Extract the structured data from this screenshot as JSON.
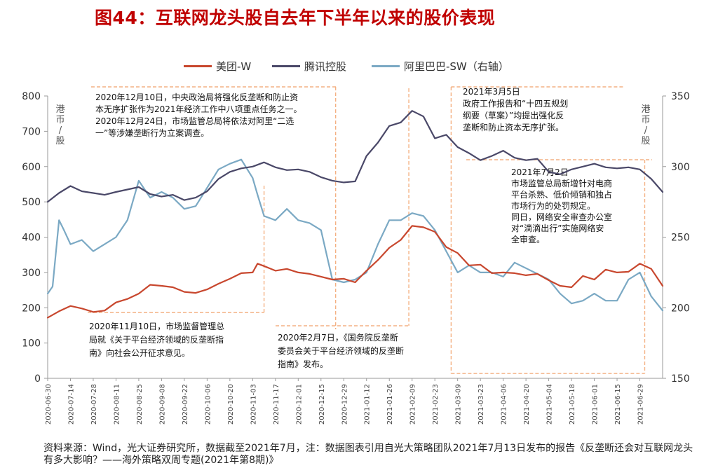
{
  "title": "图44：互联网龙头股自去年下半年以来的股价表现",
  "source": "资料来源：Wind，光大证券研究所，数据截至2021年7月，注：数据图表引用自光大策略团队2021年7月13日发布的报告《反垄断还会对互联网龙头有多大影响？——海外策略双周专题(2021年第8期)》",
  "colors": {
    "meituan": "#c8472e",
    "tencent": "#4a4868",
    "alibaba": "#7ba9c4",
    "annotation": "#f4b183",
    "title": "#c00000"
  },
  "chart_data": {
    "type": "line",
    "y_left": {
      "unit_label": "港币/股",
      "range": [
        0,
        800
      ],
      "ticks": [
        "0",
        "100",
        "200",
        "300",
        "400",
        "500",
        "600",
        "700",
        "800"
      ]
    },
    "y_right": {
      "unit_label": "港币/股",
      "range": [
        150,
        350
      ],
      "ticks": [
        "150",
        "200",
        "250",
        "300",
        "350"
      ]
    },
    "x_range": [
      "2020-06-30",
      "2021-07-13"
    ],
    "x_ticks": [
      "2020-06-30",
      "2020-07-14",
      "2020-07-28",
      "2020-08-11",
      "2020-08-25",
      "2020-09-08",
      "2020-09-22",
      "2020-10-06",
      "2020-10-20",
      "2020-11-03",
      "2020-11-17",
      "2020-12-01",
      "2020-12-15",
      "2020-12-29",
      "2021-01-12",
      "2021-01-26",
      "2021-02-09",
      "2021-02-23",
      "2021-03-09",
      "2021-03-23",
      "2021-04-06",
      "2021-04-20",
      "2021-05-04",
      "2021-05-18",
      "2021-06-01",
      "2021-06-15",
      "2021-06-29"
    ],
    "series": [
      {
        "name": "美团-W",
        "axis": "left",
        "key": "meituan",
        "points": [
          [
            "2020-06-30",
            172
          ],
          [
            "2020-07-07",
            190
          ],
          [
            "2020-07-14",
            205
          ],
          [
            "2020-07-21",
            198
          ],
          [
            "2020-07-28",
            188
          ],
          [
            "2020-08-04",
            192
          ],
          [
            "2020-08-11",
            215
          ],
          [
            "2020-08-18",
            225
          ],
          [
            "2020-08-25",
            240
          ],
          [
            "2020-09-01",
            265
          ],
          [
            "2020-09-08",
            262
          ],
          [
            "2020-09-15",
            258
          ],
          [
            "2020-09-22",
            245
          ],
          [
            "2020-09-29",
            242
          ],
          [
            "2020-10-06",
            252
          ],
          [
            "2020-10-13",
            268
          ],
          [
            "2020-10-20",
            282
          ],
          [
            "2020-10-27",
            298
          ],
          [
            "2020-11-03",
            300
          ],
          [
            "2020-11-06",
            325
          ],
          [
            "2020-11-10",
            318
          ],
          [
            "2020-11-17",
            305
          ],
          [
            "2020-11-24",
            310
          ],
          [
            "2020-12-01",
            300
          ],
          [
            "2020-12-08",
            296
          ],
          [
            "2020-12-15",
            288
          ],
          [
            "2020-12-22",
            280
          ],
          [
            "2020-12-29",
            282
          ],
          [
            "2021-01-05",
            272
          ],
          [
            "2021-01-12",
            305
          ],
          [
            "2021-01-19",
            335
          ],
          [
            "2021-01-26",
            370
          ],
          [
            "2021-02-02",
            392
          ],
          [
            "2021-02-09",
            432
          ],
          [
            "2021-02-16",
            428
          ],
          [
            "2021-02-23",
            415
          ],
          [
            "2021-03-02",
            372
          ],
          [
            "2021-03-09",
            355
          ],
          [
            "2021-03-16",
            320
          ],
          [
            "2021-03-23",
            322
          ],
          [
            "2021-03-30",
            298
          ],
          [
            "2021-04-06",
            300
          ],
          [
            "2021-04-13",
            298
          ],
          [
            "2021-04-20",
            292
          ],
          [
            "2021-04-27",
            296
          ],
          [
            "2021-05-04",
            278
          ],
          [
            "2021-05-11",
            262
          ],
          [
            "2021-05-18",
            258
          ],
          [
            "2021-05-25",
            290
          ],
          [
            "2021-06-01",
            280
          ],
          [
            "2021-06-08",
            308
          ],
          [
            "2021-06-15",
            300
          ],
          [
            "2021-06-22",
            302
          ],
          [
            "2021-06-29",
            325
          ],
          [
            "2021-07-06",
            310
          ],
          [
            "2021-07-13",
            262
          ]
        ]
      },
      {
        "name": "腾讯控股",
        "axis": "left",
        "key": "tencent",
        "points": [
          [
            "2020-06-30",
            500
          ],
          [
            "2020-07-07",
            525
          ],
          [
            "2020-07-14",
            545
          ],
          [
            "2020-07-21",
            530
          ],
          [
            "2020-07-28",
            525
          ],
          [
            "2020-08-04",
            520
          ],
          [
            "2020-08-11",
            528
          ],
          [
            "2020-08-18",
            535
          ],
          [
            "2020-08-25",
            542
          ],
          [
            "2020-09-01",
            522
          ],
          [
            "2020-09-08",
            515
          ],
          [
            "2020-09-15",
            520
          ],
          [
            "2020-09-22",
            505
          ],
          [
            "2020-09-29",
            512
          ],
          [
            "2020-10-06",
            530
          ],
          [
            "2020-10-13",
            565
          ],
          [
            "2020-10-20",
            585
          ],
          [
            "2020-10-27",
            595
          ],
          [
            "2020-11-03",
            600
          ],
          [
            "2020-11-10",
            612
          ],
          [
            "2020-11-17",
            598
          ],
          [
            "2020-11-24",
            590
          ],
          [
            "2020-12-01",
            592
          ],
          [
            "2020-12-08",
            585
          ],
          [
            "2020-12-15",
            570
          ],
          [
            "2020-12-22",
            560
          ],
          [
            "2020-12-29",
            555
          ],
          [
            "2021-01-05",
            558
          ],
          [
            "2021-01-12",
            630
          ],
          [
            "2021-01-19",
            668
          ],
          [
            "2021-01-26",
            715
          ],
          [
            "2021-02-02",
            725
          ],
          [
            "2021-02-09",
            758
          ],
          [
            "2021-02-16",
            742
          ],
          [
            "2021-02-23",
            680
          ],
          [
            "2021-03-02",
            690
          ],
          [
            "2021-03-09",
            655
          ],
          [
            "2021-03-16",
            638
          ],
          [
            "2021-03-23",
            618
          ],
          [
            "2021-03-30",
            630
          ],
          [
            "2021-04-06",
            645
          ],
          [
            "2021-04-13",
            625
          ],
          [
            "2021-04-20",
            618
          ],
          [
            "2021-04-27",
            622
          ],
          [
            "2021-05-04",
            585
          ],
          [
            "2021-05-11",
            578
          ],
          [
            "2021-05-18",
            592
          ],
          [
            "2021-05-25",
            600
          ],
          [
            "2021-06-01",
            608
          ],
          [
            "2021-06-08",
            598
          ],
          [
            "2021-06-15",
            595
          ],
          [
            "2021-06-22",
            598
          ],
          [
            "2021-06-29",
            592
          ],
          [
            "2021-07-06",
            565
          ],
          [
            "2021-07-13",
            528
          ]
        ]
      },
      {
        "name": "阿里巴巴-SW（右轴）",
        "axis": "right",
        "key": "alibaba",
        "points": [
          [
            "2020-06-30",
            210
          ],
          [
            "2020-07-03",
            215
          ],
          [
            "2020-07-07",
            262
          ],
          [
            "2020-07-10",
            255
          ],
          [
            "2020-07-14",
            245
          ],
          [
            "2020-07-21",
            248
          ],
          [
            "2020-07-28",
            240
          ],
          [
            "2020-08-04",
            245
          ],
          [
            "2020-08-11",
            250
          ],
          [
            "2020-08-18",
            262
          ],
          [
            "2020-08-25",
            290
          ],
          [
            "2020-09-01",
            278
          ],
          [
            "2020-09-08",
            282
          ],
          [
            "2020-09-15",
            278
          ],
          [
            "2020-09-22",
            270
          ],
          [
            "2020-09-29",
            272
          ],
          [
            "2020-10-06",
            285
          ],
          [
            "2020-10-13",
            298
          ],
          [
            "2020-10-20",
            302
          ],
          [
            "2020-10-27",
            305
          ],
          [
            "2020-11-03",
            292
          ],
          [
            "2020-11-06",
            280
          ],
          [
            "2020-11-10",
            265
          ],
          [
            "2020-11-17",
            262
          ],
          [
            "2020-11-24",
            270
          ],
          [
            "2020-12-01",
            262
          ],
          [
            "2020-12-08",
            260
          ],
          [
            "2020-12-15",
            255
          ],
          [
            "2020-12-22",
            220
          ],
          [
            "2020-12-29",
            218
          ],
          [
            "2021-01-05",
            220
          ],
          [
            "2021-01-12",
            225
          ],
          [
            "2021-01-19",
            245
          ],
          [
            "2021-01-26",
            262
          ],
          [
            "2021-02-02",
            262
          ],
          [
            "2021-02-09",
            267
          ],
          [
            "2021-02-16",
            265
          ],
          [
            "2021-02-23",
            255
          ],
          [
            "2021-03-02",
            240
          ],
          [
            "2021-03-09",
            225
          ],
          [
            "2021-03-16",
            230
          ],
          [
            "2021-03-23",
            225
          ],
          [
            "2021-03-30",
            225
          ],
          [
            "2021-04-06",
            222
          ],
          [
            "2021-04-13",
            232
          ],
          [
            "2021-04-20",
            228
          ],
          [
            "2021-04-27",
            224
          ],
          [
            "2021-05-04",
            220
          ],
          [
            "2021-05-11",
            210
          ],
          [
            "2021-05-18",
            203
          ],
          [
            "2021-05-25",
            205
          ],
          [
            "2021-06-01",
            210
          ],
          [
            "2021-06-08",
            205
          ],
          [
            "2021-06-15",
            205
          ],
          [
            "2021-06-22",
            220
          ],
          [
            "2021-06-29",
            225
          ],
          [
            "2021-07-06",
            208
          ],
          [
            "2021-07-13",
            198
          ]
        ]
      }
    ],
    "annotations": [
      {
        "date": "2020-11-10",
        "text": [
          "2020年11月10日，市场监督管理总",
          "局就《关于平台经济领域的反垄断指",
          "南》向社会公开征求意见。"
        ]
      },
      {
        "date": "2020-12-24",
        "text": [
          "2020年12月10日，中央政治局将强化反垄断和防止资",
          "本无序扩张作为2021年经济工作中八项重点任务之一。",
          "2020年12月24日，市场监管总局将依法对阿里“二选",
          "一”等涉嫌垄断行为立案调查。"
        ]
      },
      {
        "date": "2021-02-07",
        "text": [
          "2020年2月7日，《国务院反垄断",
          "委员会关于平台经济领域的反垄断",
          "指南》发布。"
        ]
      },
      {
        "date": "2021-03-05",
        "text": [
          "2021年3月5日",
          "政府工作报告和“十四五规划",
          "纲要（草案）”均提出强化反",
          "垄断和防止资本无序扩张。"
        ]
      },
      {
        "date": "2021-07-02",
        "text": [
          "2021年7月2日",
          "市场监管总局新增针对电商",
          "平台杀熟、低价倾销和独占",
          "市场行为的处罚规定。",
          "同日，网络安全审查办公室",
          "对“滴滴出行”实施网络安",
          "全审查。"
        ]
      }
    ]
  }
}
